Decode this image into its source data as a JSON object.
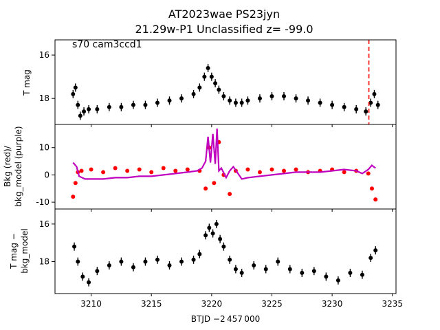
{
  "figure": {
    "title_line1": "AT2023wae  PS23jyn",
    "title_line2": "21.29w-P1 Unclassified z= -99.0",
    "xlabel": "BTJD −2 457 000",
    "annotation": "s70 cam3ccd1"
  },
  "colors": {
    "obs": "#000000",
    "bkg": "#ff0000",
    "bkg_model": "#bf00bf",
    "marker_line": "#ff0000"
  },
  "chart_data": [
    {
      "type": "scatter",
      "panel": "top",
      "ylabel": "T mag",
      "y_inverted": true,
      "xlim": [
        3207.0,
        3235.3
      ],
      "ylim": [
        19.2,
        15.3
      ],
      "xticks": [
        3210,
        3215,
        3220,
        3225,
        3230,
        3235
      ],
      "yticks": [
        16,
        18
      ],
      "vline_x": 3233.05,
      "series": [
        {
          "x": [
            3208.5,
            3208.7,
            3208.9,
            3209.1,
            3209.4,
            3209.8,
            3210.5,
            3211.5,
            3212.5,
            3213.5,
            3214.5,
            3215.5,
            3216.5,
            3217.5,
            3218.5,
            3219.0,
            3219.4,
            3219.7,
            3220.0,
            3220.3,
            3220.6,
            3221.0,
            3221.5,
            3222.0,
            3222.5,
            3223.0,
            3224.0,
            3225.0,
            3226.0,
            3227.0,
            3228.0,
            3229.0,
            3230.0,
            3231.0,
            3232.0,
            3232.8,
            3233.2,
            3233.5,
            3233.8
          ],
          "y": [
            17.8,
            17.5,
            18.3,
            18.8,
            18.6,
            18.5,
            18.5,
            18.4,
            18.4,
            18.3,
            18.3,
            18.2,
            18.1,
            18.0,
            17.8,
            17.5,
            17.0,
            16.6,
            17.0,
            17.3,
            17.6,
            17.9,
            18.1,
            18.2,
            18.2,
            18.1,
            18.0,
            17.9,
            17.9,
            18.0,
            18.1,
            18.2,
            18.3,
            18.4,
            18.5,
            18.6,
            18.2,
            17.8,
            18.3
          ]
        }
      ]
    },
    {
      "type": "scatter",
      "panel": "middle",
      "ylabel_line1": "Bkg (red)/",
      "ylabel_line2": "bkg_model (purple)",
      "xlim": [
        3207.0,
        3235.3
      ],
      "ylim": [
        -12.5,
        18.5
      ],
      "yticks": [
        -10,
        0,
        10
      ],
      "series": [
        {
          "name": "Bkg",
          "x": [
            3208.5,
            3208.7,
            3208.9,
            3209.2,
            3210.0,
            3211.0,
            3212.0,
            3213.0,
            3214.0,
            3215.0,
            3216.0,
            3217.0,
            3218.0,
            3219.0,
            3219.5,
            3219.8,
            3220.2,
            3220.6,
            3221.0,
            3221.5,
            3222.0,
            3223.0,
            3224.0,
            3225.0,
            3226.0,
            3227.0,
            3228.0,
            3229.0,
            3230.0,
            3231.0,
            3232.0,
            3233.0,
            3233.3,
            3233.6
          ],
          "y": [
            -8.0,
            -3.0,
            1.0,
            1.5,
            2.0,
            1.0,
            2.5,
            1.5,
            2.0,
            1.0,
            2.5,
            1.5,
            2.0,
            1.5,
            -5.0,
            10.0,
            -3.0,
            12.0,
            0.0,
            -7.0,
            1.5,
            2.0,
            1.0,
            2.0,
            1.5,
            2.0,
            1.0,
            1.5,
            2.0,
            1.0,
            1.5,
            0.5,
            -5.0,
            -9.0
          ]
        },
        {
          "name": "bkg_model",
          "x": [
            3208.5,
            3208.8,
            3209.0,
            3209.5,
            3210.0,
            3211.0,
            3212.0,
            3213.0,
            3214.0,
            3215.0,
            3216.0,
            3217.0,
            3218.0,
            3218.8,
            3219.2,
            3219.5,
            3219.7,
            3219.9,
            3220.1,
            3220.3,
            3220.45,
            3220.6,
            3220.8,
            3221.2,
            3221.5,
            3221.8,
            3222.5,
            3223.0,
            3224.0,
            3225.0,
            3226.0,
            3227.0,
            3228.0,
            3229.0,
            3230.0,
            3231.0,
            3232.0,
            3232.5,
            3233.0,
            3233.3,
            3233.6
          ],
          "y": [
            4.5,
            3.0,
            -0.5,
            -1.5,
            -1.5,
            -1.5,
            -1.0,
            -1.0,
            -0.5,
            -0.5,
            0.0,
            0.5,
            1.0,
            1.5,
            2.5,
            5.0,
            14.0,
            4.5,
            15.0,
            4.0,
            17.0,
            1.5,
            2.5,
            -1.0,
            1.5,
            3.0,
            -1.5,
            -1.0,
            -0.5,
            0.0,
            0.5,
            1.0,
            1.0,
            1.0,
            1.5,
            2.0,
            1.5,
            0.5,
            2.0,
            3.5,
            2.5
          ]
        }
      ]
    },
    {
      "type": "scatter",
      "panel": "bottom",
      "ylabel_line1": "T mag −",
      "ylabel_line2": "bkg_model",
      "y_inverted": true,
      "xlim": [
        3207.0,
        3235.3
      ],
      "ylim": [
        19.7,
        15.2
      ],
      "yticks": [
        16,
        18
      ],
      "series": [
        {
          "x": [
            3208.6,
            3208.9,
            3209.3,
            3209.8,
            3210.5,
            3211.5,
            3212.5,
            3213.5,
            3214.5,
            3215.5,
            3216.5,
            3217.5,
            3218.5,
            3219.0,
            3219.5,
            3219.8,
            3220.1,
            3220.4,
            3220.7,
            3221.0,
            3221.5,
            3222.0,
            3222.5,
            3223.5,
            3224.5,
            3225.5,
            3226.5,
            3227.5,
            3228.5,
            3229.5,
            3230.5,
            3231.5,
            3232.5,
            3233.2,
            3233.6
          ],
          "y": [
            17.2,
            18.0,
            18.8,
            19.1,
            18.5,
            18.2,
            18.0,
            18.3,
            18.0,
            17.9,
            18.2,
            18.0,
            17.9,
            17.6,
            16.6,
            16.2,
            16.5,
            16.0,
            16.8,
            17.2,
            17.9,
            18.4,
            18.6,
            18.2,
            18.4,
            18.0,
            18.4,
            18.6,
            18.5,
            18.8,
            19.0,
            18.6,
            18.7,
            17.8,
            17.4
          ]
        }
      ]
    }
  ]
}
